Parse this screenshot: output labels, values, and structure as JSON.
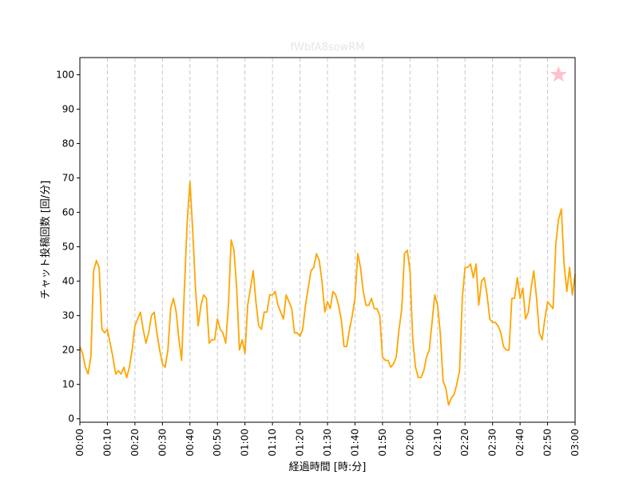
{
  "chart_data": {
    "type": "line",
    "title": "fWbfA8sowRM",
    "xlabel": "経過時間 [時:分]",
    "ylabel": "チャット投稿回数 [回/分]",
    "xlim": [
      0,
      180
    ],
    "ylim": [
      -1,
      105
    ],
    "x_ticks": [
      0,
      10,
      20,
      30,
      40,
      50,
      60,
      70,
      80,
      90,
      100,
      110,
      120,
      130,
      140,
      150,
      160,
      170,
      180
    ],
    "x_tick_labels": [
      "00:00",
      "00:10",
      "00:20",
      "00:30",
      "00:40",
      "00:50",
      "01:00",
      "01:10",
      "01:20",
      "01:30",
      "01:40",
      "01:50",
      "02:00",
      "02:10",
      "02:20",
      "02:30",
      "02:40",
      "02:50",
      "03:00"
    ],
    "y_ticks": [
      0,
      10,
      20,
      30,
      40,
      50,
      60,
      70,
      80,
      90,
      100
    ],
    "grid": "vertical dashed at x ticks",
    "line_color": "#ffa500",
    "marker_color": "#ffc0cb",
    "series": [
      {
        "x": [
          0,
          1,
          2,
          3,
          4,
          5,
          6,
          7,
          8,
          9,
          10,
          11,
          12,
          13,
          14,
          15,
          16,
          17,
          18,
          19,
          20,
          21,
          22,
          23,
          24,
          25,
          26,
          27,
          28,
          29,
          30,
          31,
          32,
          33,
          34,
          35,
          36,
          37,
          38,
          39,
          40,
          41,
          42,
          43,
          44,
          45,
          46,
          47,
          48,
          49,
          50,
          51,
          52,
          53,
          54,
          55,
          56,
          57,
          58,
          59,
          60,
          61,
          62,
          63,
          64,
          65,
          66,
          67,
          68,
          69,
          70,
          71,
          72,
          73,
          74,
          75,
          76,
          77,
          78,
          79,
          80,
          81,
          82,
          83,
          84,
          85,
          86,
          87,
          88,
          89,
          90,
          91,
          92,
          93,
          94,
          95,
          96,
          97,
          98,
          99,
          100,
          101,
          102,
          103,
          104,
          105,
          106,
          107,
          108,
          109,
          110,
          111,
          112,
          113,
          114,
          115,
          116,
          117,
          118,
          119,
          120,
          121,
          122,
          123,
          124,
          125,
          126,
          127,
          128,
          129,
          130,
          131,
          132,
          133,
          134,
          135,
          136,
          137,
          138,
          139,
          140,
          141,
          142,
          143,
          144,
          145,
          146,
          147,
          148,
          149,
          150,
          151,
          152,
          153,
          154,
          155,
          156,
          157,
          158,
          159,
          160,
          161,
          162,
          163,
          164,
          165,
          166,
          167,
          168,
          169,
          170,
          171,
          172,
          173,
          174,
          175,
          176,
          177,
          178,
          179,
          180
        ],
        "y": [
          21,
          19,
          15,
          13,
          18,
          43,
          46,
          44,
          26,
          25,
          26,
          22,
          18,
          13,
          14,
          13,
          15,
          12,
          15,
          20,
          27,
          29,
          31,
          26,
          22,
          25,
          30,
          31,
          25,
          20,
          16,
          15,
          20,
          32,
          35,
          31,
          23,
          17,
          38,
          57,
          69,
          55,
          38,
          27,
          33,
          36,
          35,
          22,
          23,
          23,
          29,
          26,
          25,
          22,
          33,
          52,
          49,
          38,
          20,
          23,
          19,
          33,
          38,
          43,
          34,
          27,
          26,
          31,
          31,
          36,
          36,
          37,
          33,
          31,
          29,
          36,
          34,
          32,
          25,
          25,
          24,
          26,
          33,
          38,
          43,
          44,
          48,
          46,
          40,
          31,
          34,
          32,
          37,
          36,
          33,
          29,
          21,
          21,
          26,
          30,
          35,
          48,
          44,
          37,
          33,
          33,
          35,
          32,
          32,
          30,
          18,
          17,
          17,
          15,
          16,
          18,
          26,
          32,
          48,
          49,
          43,
          23,
          15,
          12,
          12,
          14,
          18,
          20,
          28,
          36,
          33,
          25,
          11,
          9,
          4,
          6,
          7,
          10,
          14,
          35,
          44,
          44,
          45,
          41,
          45,
          33,
          40,
          41,
          36,
          29,
          28,
          28,
          27,
          25,
          21,
          20,
          20,
          35,
          35,
          41,
          35,
          38,
          29,
          31,
          38,
          43,
          35,
          25,
          23,
          29,
          34,
          33,
          32,
          51,
          58,
          61,
          45,
          37,
          44,
          36,
          42
        ]
      }
    ],
    "annotations": [
      {
        "type": "marker",
        "shape": "star",
        "x": 174,
        "y": 100
      }
    ]
  }
}
